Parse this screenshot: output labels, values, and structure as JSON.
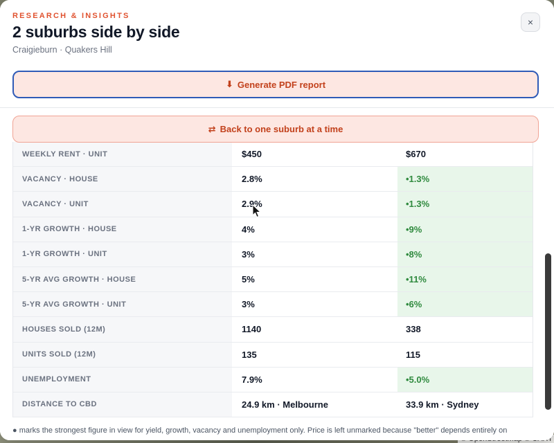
{
  "header": {
    "eyebrow": "RESEARCH & INSIGHTS",
    "title": "2 suburbs side by side",
    "subtitle": "Craigieburn · Quakers Hill",
    "close_label": "×",
    "pdf_button": {
      "icon": "⬇",
      "label": "Generate PDF report"
    }
  },
  "back_button": {
    "icon": "⇄",
    "label": "Back to one suburb at a time"
  },
  "table": {
    "rows": [
      {
        "label": "WEEKLY RENT · UNIT",
        "a": "$450",
        "b": "$670",
        "best": ""
      },
      {
        "label": "VACANCY · HOUSE",
        "a": "2.8%",
        "b": "•1.3%",
        "best": "b"
      },
      {
        "label": "VACANCY · UNIT",
        "a": "2.9%",
        "b": "•1.3%",
        "best": "b"
      },
      {
        "label": "1-YR GROWTH · HOUSE",
        "a": "4%",
        "b": "•9%",
        "best": "b"
      },
      {
        "label": "1-YR GROWTH · UNIT",
        "a": "3%",
        "b": "•8%",
        "best": "b"
      },
      {
        "label": "5-YR AVG GROWTH · HOUSE",
        "a": "5%",
        "b": "•11%",
        "best": "b"
      },
      {
        "label": "5-YR AVG GROWTH · UNIT",
        "a": "3%",
        "b": "•6%",
        "best": "b"
      },
      {
        "label": "HOUSES SOLD (12M)",
        "a": "1140",
        "b": "338",
        "best": ""
      },
      {
        "label": "UNITS SOLD (12M)",
        "a": "135",
        "b": "115",
        "best": ""
      },
      {
        "label": "UNEMPLOYMENT",
        "a": "7.9%",
        "b": "•5.0%",
        "best": "b"
      },
      {
        "label": "DISTANCE TO CBD",
        "a": "24.9 km · Melbourne",
        "b": "33.9 km · Sydney",
        "best": ""
      }
    ]
  },
  "footnote": "● marks the strongest figure in view for yield, growth, vacancy and unemployment only. Price is left unmarked because \"better\" depends entirely on",
  "map_attribution": "© OpenStreetMap © CART",
  "colors": {
    "accent": "#e0522f",
    "button_text": "#c2411c",
    "button_bg": "#fde7e2",
    "focus_border": "#2f5bb7",
    "best_bg": "#e8f6ea",
    "best_text": "#2f8a3e"
  }
}
